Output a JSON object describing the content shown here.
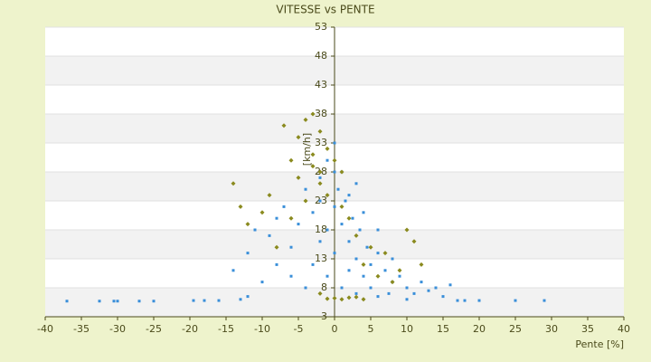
{
  "chart_data": {
    "type": "scatter",
    "title": "VITESSE vs PENTE",
    "x_label": "Pente [%]",
    "y_label": "[km/h]",
    "xlim": [
      -40,
      40
    ],
    "xticks": [
      -40,
      -35,
      -30,
      -25,
      -20,
      -15,
      -10,
      -5,
      0,
      5,
      10,
      15,
      20,
      25,
      30,
      35,
      40
    ],
    "ylim": [
      3,
      53
    ],
    "yticks": [
      3,
      8,
      13,
      18,
      23,
      28,
      33,
      38,
      43,
      48,
      53
    ],
    "grid": true,
    "series": [
      {
        "color": "#3a8fd9",
        "x": [
          -37,
          -32.5,
          -30.5,
          -30,
          -27,
          -25,
          -19.5,
          -18,
          -16,
          -13,
          -12,
          -14,
          -12,
          -10,
          -9,
          -8,
          -7,
          -6,
          -5,
          -4,
          -3,
          -2,
          -2,
          -1,
          -1,
          0,
          0,
          0,
          0.5,
          1,
          1,
          1.5,
          2,
          2,
          2.5,
          3,
          3,
          3.5,
          4,
          4.5,
          5,
          5,
          6,
          6,
          7,
          7.5,
          8,
          9,
          10,
          10,
          11,
          12,
          13,
          14,
          15,
          16,
          17,
          18,
          20,
          25,
          29,
          -3,
          -1,
          0,
          1,
          2,
          -4,
          4,
          6,
          8,
          -6,
          -11,
          -8,
          3,
          -2
        ],
        "values": [
          5.7,
          5.7,
          5.7,
          5.7,
          5.7,
          5.7,
          5.8,
          5.8,
          5.8,
          6,
          6.5,
          11,
          14,
          9,
          17,
          12,
          22,
          15,
          19,
          25,
          21,
          16,
          27,
          30,
          10,
          28,
          22,
          14,
          25,
          19,
          8,
          23,
          16,
          11,
          20,
          13,
          7,
          18,
          10,
          15,
          12,
          8,
          14,
          6.5,
          11,
          7,
          9,
          10,
          8,
          6,
          7,
          9,
          7.5,
          8,
          6.5,
          8.5,
          5.8,
          5.8,
          5.8,
          5.8,
          5.8,
          12,
          18,
          33,
          28,
          24,
          8,
          21,
          18,
          13,
          10,
          18,
          20,
          26,
          23
        ]
      },
      {
        "color": "#8a8a1e",
        "x": [
          -7,
          -5,
          -4,
          -3,
          -2,
          -1,
          0,
          1,
          -6,
          -5,
          -3,
          -9,
          -14,
          -13,
          -12,
          -10,
          -8,
          -6,
          -4,
          -2,
          0,
          1,
          2,
          -1,
          -2,
          3,
          4,
          2,
          3,
          4,
          6,
          8,
          10,
          11,
          12,
          5,
          7,
          9,
          -1,
          1,
          -3,
          -2
        ],
        "values": [
          36,
          34,
          37,
          38,
          35,
          32,
          30,
          28,
          30,
          27,
          29,
          24,
          26,
          22,
          19,
          21,
          15,
          20,
          23,
          26,
          6.2,
          6,
          6.3,
          6.1,
          7,
          6.4,
          6,
          20,
          17,
          12,
          10,
          9,
          18,
          16,
          12,
          15,
          14,
          11,
          24,
          22,
          31,
          28
        ]
      }
    ]
  }
}
